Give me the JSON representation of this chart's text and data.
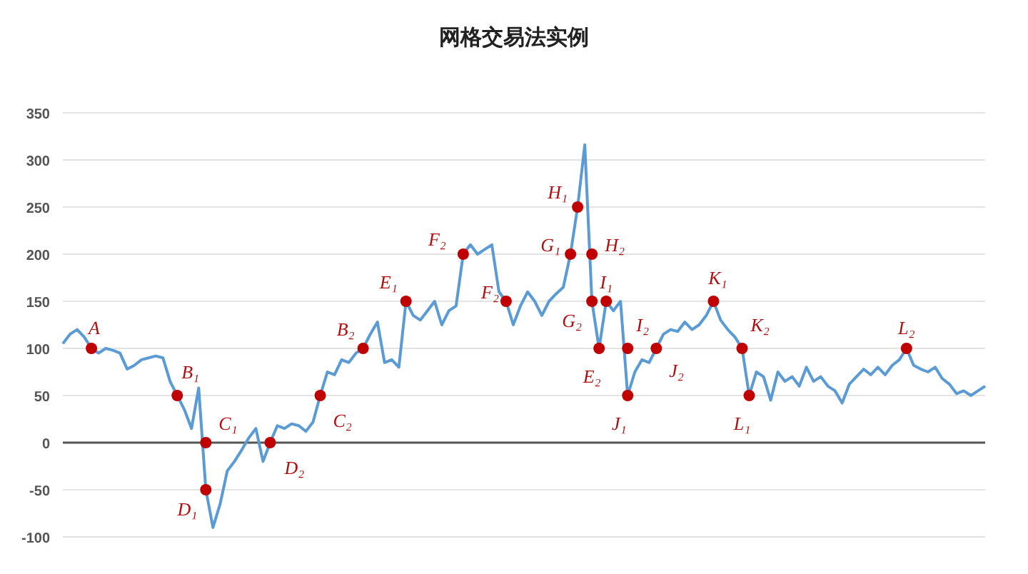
{
  "chart_data": {
    "type": "line",
    "title": "网格交易法实例",
    "categories": [
      null,
      null,
      null,
      null,
      null,
      null,
      null,
      null,
      null,
      null,
      null,
      null,
      null,
      null,
      null,
      null,
      null,
      null,
      null,
      null,
      null,
      null,
      null,
      null,
      null,
      null,
      null,
      null,
      null,
      null,
      null,
      null,
      null,
      null,
      null,
      null,
      null,
      null,
      null,
      null,
      null,
      null,
      null,
      null,
      null,
      null,
      null,
      null,
      null,
      null,
      null,
      null,
      null,
      null,
      null,
      null,
      null,
      null,
      null,
      null,
      null,
      null,
      null,
      null,
      null,
      null,
      null,
      null,
      null,
      null,
      null,
      null,
      null,
      null,
      null,
      null,
      null,
      null,
      null,
      null,
      null,
      null,
      null,
      null,
      null,
      null,
      null,
      null,
      null,
      null,
      null,
      null,
      null,
      null,
      null,
      null,
      null,
      null,
      null,
      null,
      null,
      null,
      null,
      null,
      null,
      null,
      null,
      null,
      null,
      null,
      null,
      null,
      null,
      null,
      null,
      null,
      null,
      null,
      null,
      null,
      null,
      null,
      null,
      null,
      null,
      null,
      null,
      null,
      null,
      null
    ],
    "series": [
      {
        "type": "line",
        "color": "#5b9bd5",
        "values": [
          105,
          115,
          120,
          112,
          100,
          95,
          100,
          98,
          95,
          78,
          82,
          88,
          90,
          92,
          90,
          65,
          50,
          35,
          15,
          58,
          -50,
          -90,
          -65,
          -30,
          -20,
          -8,
          5,
          15,
          -20,
          0,
          18,
          15,
          20,
          18,
          12,
          22,
          50,
          75,
          72,
          88,
          85,
          95,
          100,
          115,
          128,
          85,
          88,
          80,
          150,
          135,
          130,
          140,
          150,
          125,
          140,
          145,
          200,
          210,
          200,
          205,
          210,
          160,
          150,
          125,
          145,
          160,
          150,
          135,
          150,
          158,
          165,
          200,
          250,
          316,
          150,
          100,
          150,
          140,
          150,
          50,
          75,
          88,
          85,
          100,
          115,
          120,
          118,
          128,
          120,
          125,
          135,
          150,
          130,
          120,
          112,
          100,
          50,
          75,
          70,
          45,
          75,
          65,
          70,
          60,
          80,
          65,
          70,
          60,
          55,
          42,
          62,
          70,
          78,
          72,
          80,
          72,
          82,
          88,
          100,
          82,
          78,
          75,
          80,
          68,
          62,
          52,
          55,
          50,
          55,
          60
        ]
      },
      {
        "type": "scatter",
        "color": "#c00000",
        "marker": "circle",
        "values": [
          null,
          null,
          null,
          null,
          100,
          null,
          null,
          null,
          null,
          null,
          null,
          null,
          null,
          null,
          null,
          null,
          50,
          null,
          null,
          null,
          0,
          null,
          null,
          null,
          null,
          null,
          null,
          null,
          null,
          0,
          null,
          null,
          null,
          null,
          null,
          null,
          50,
          null,
          null,
          null,
          null,
          null,
          100,
          null,
          null,
          null,
          null,
          null,
          150,
          null,
          null,
          null,
          null,
          null,
          null,
          null,
          200,
          null,
          null,
          null,
          null,
          null,
          150,
          null,
          null,
          null,
          null,
          null,
          null,
          null,
          null,
          200,
          250,
          null,
          200,
          100,
          150,
          null,
          null,
          100,
          null,
          null,
          null,
          100,
          null,
          null,
          null,
          null,
          null,
          null,
          null,
          150,
          null,
          null,
          null,
          100,
          null,
          null,
          null,
          null,
          null,
          null,
          null,
          null,
          null,
          null,
          null,
          null,
          null,
          null,
          null,
          null,
          null,
          null,
          null,
          null,
          null,
          null,
          100,
          null,
          null,
          null,
          null,
          null,
          null,
          null,
          null,
          null,
          null,
          null
        ],
        "value_labels": [
          null,
          null,
          null,
          null,
          "A",
          null,
          null,
          null,
          null,
          null,
          null,
          null,
          null,
          null,
          null,
          null,
          "B₁",
          null,
          null,
          null,
          "C₁",
          null,
          null,
          null,
          null,
          null,
          null,
          null,
          null,
          "D₂",
          null,
          null,
          null,
          null,
          null,
          null,
          "C₂",
          null,
          null,
          null,
          null,
          null,
          "B₂",
          null,
          null,
          null,
          null,
          null,
          "E₁",
          null,
          null,
          null,
          null,
          null,
          null,
          null,
          "F₂",
          null,
          null,
          null,
          null,
          null,
          "F₂",
          null,
          null,
          null,
          null,
          null,
          null,
          null,
          null,
          "G₁",
          "H₁",
          null,
          "H₂",
          "E₂",
          "I₁",
          null,
          null,
          "I₂",
          null,
          null,
          null,
          "J₂",
          null,
          null,
          null,
          null,
          null,
          null,
          null,
          "K₁",
          null,
          null,
          null,
          "K₂",
          null,
          null,
          null,
          null,
          null,
          null,
          null,
          null,
          null,
          null,
          null,
          null,
          null,
          null,
          null,
          null,
          null,
          null,
          null,
          null,
          null,
          null,
          "L₂",
          null,
          null,
          null,
          null,
          null,
          null,
          null,
          null,
          null,
          null,
          null
        ]
      },
      {
        "type": "scatter",
        "color": "#c00000",
        "marker": "circle",
        "values": [
          null,
          null,
          null,
          null,
          null,
          null,
          null,
          null,
          null,
          null,
          null,
          null,
          null,
          null,
          null,
          null,
          null,
          null,
          null,
          null,
          -50,
          null,
          null,
          null,
          null,
          null,
          null,
          null,
          null,
          null,
          null,
          null,
          null,
          null,
          null,
          null,
          null,
          null,
          null,
          null,
          null,
          null,
          null,
          null,
          null,
          null,
          null,
          null,
          null,
          null,
          null,
          null,
          null,
          null,
          null,
          null,
          null,
          null,
          null,
          null,
          null,
          null,
          null,
          null,
          null,
          null,
          null,
          null,
          null,
          null,
          null,
          null,
          null,
          null,
          150,
          null,
          null,
          null,
          null,
          50,
          null,
          null,
          null,
          null,
          null,
          null,
          null,
          null,
          null,
          null,
          null,
          null,
          null,
          null,
          null,
          null,
          50,
          null,
          null,
          null,
          null,
          null,
          null,
          null,
          null,
          null,
          null,
          null,
          null,
          null,
          null,
          null,
          null,
          null,
          null,
          null,
          null,
          null,
          null,
          null,
          null,
          null,
          null,
          null,
          null,
          null,
          null,
          null,
          null,
          null
        ],
        "value_labels": [
          null,
          null,
          null,
          null,
          null,
          null,
          null,
          null,
          null,
          null,
          null,
          null,
          null,
          null,
          null,
          null,
          null,
          null,
          null,
          null,
          "D₁",
          null,
          null,
          null,
          null,
          null,
          null,
          null,
          null,
          null,
          null,
          null,
          null,
          null,
          null,
          null,
          null,
          null,
          null,
          null,
          null,
          null,
          null,
          null,
          null,
          null,
          null,
          null,
          null,
          null,
          null,
          null,
          null,
          null,
          null,
          null,
          null,
          null,
          null,
          null,
          null,
          null,
          null,
          null,
          null,
          null,
          null,
          null,
          null,
          null,
          null,
          null,
          null,
          null,
          "G₂",
          null,
          null,
          null,
          null,
          "J₁",
          null,
          null,
          null,
          null,
          null,
          null,
          null,
          null,
          null,
          null,
          null,
          null,
          null,
          null,
          null,
          null,
          "L₁",
          null,
          null,
          null,
          null,
          null,
          null,
          null,
          null,
          null,
          null,
          null,
          null,
          null,
          null,
          null,
          null,
          null,
          null,
          null,
          null,
          null,
          null,
          null,
          null,
          null,
          null,
          null,
          null,
          null,
          null,
          null,
          null,
          null
        ]
      }
    ],
    "ylim": [
      -100,
      350
    ],
    "yticks": [
      -100,
      -50,
      0,
      50,
      100,
      150,
      200,
      250,
      300,
      350
    ],
    "grid": "y"
  }
}
